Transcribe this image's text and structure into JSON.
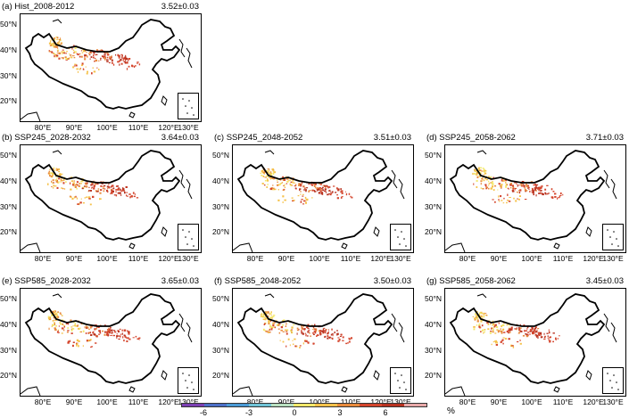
{
  "panels": [
    {
      "title": "(a) Hist_2008-2012",
      "value": "3.52±0.03"
    },
    {
      "title": "(b) SSP245_2028-2032",
      "value": "3.64±0.03"
    },
    {
      "title": "(c) SSP245_2048-2052",
      "value": "3.51±0.03"
    },
    {
      "title": "(d) SSP245_2058-2062",
      "value": "3.71±0.03"
    },
    {
      "title": "(e) SSP585_2028-2032",
      "value": "3.65±0.03"
    },
    {
      "title": "(f) SSP585_2048-2052",
      "value": "3.50±0.03"
    },
    {
      "title": "(g) SSP585_2058-2062",
      "value": "3.45±0.03"
    }
  ],
  "axes": {
    "lat_labels": [
      "50°N",
      "40°N",
      "30°N",
      "20°N"
    ],
    "lon_labels": [
      "80°E",
      "90°E",
      "100°E",
      "110°E",
      "120°E",
      "130°E"
    ]
  },
  "colorbar": {
    "tick_labels": [
      "-6",
      "-3",
      "0",
      "3",
      "6"
    ],
    "unit": "%",
    "colors": [
      "#7b3fb3",
      "#4c6fc7",
      "#4a9ad6",
      "#6fc3d6",
      "#b8e0c0",
      "#f2e86a",
      "#f6c24a",
      "#e88a3c",
      "#d4452c",
      "#b83220",
      "#e8a8a8"
    ]
  }
}
